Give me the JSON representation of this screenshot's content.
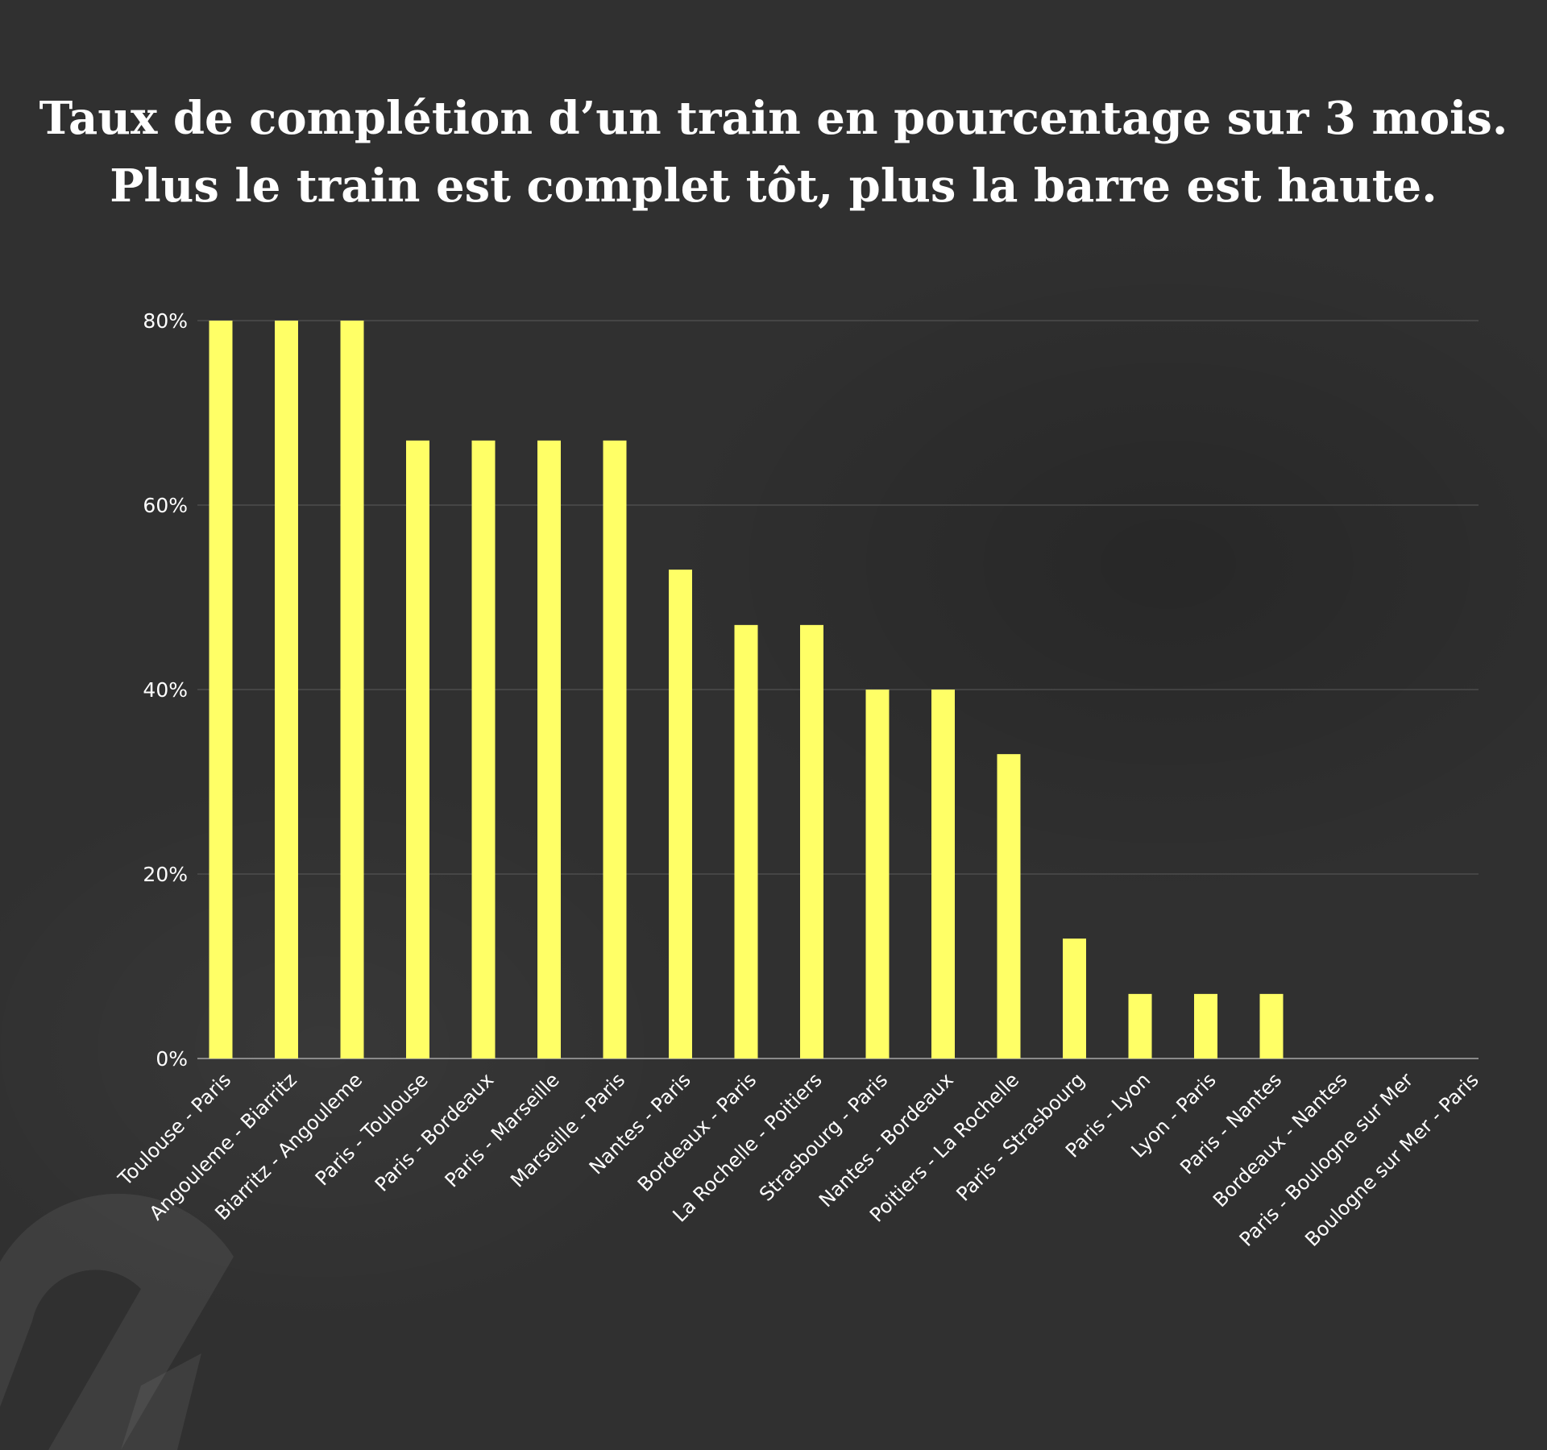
{
  "title_lines": [
    "Taux de complétion d’un train en pourcentage sur 3 mois.",
    "Plus le train est complet tôt, plus la barre est haute."
  ],
  "colors": {
    "background": "#303030",
    "bar": "#ffff66",
    "grid": "#5a5a5a",
    "text": "#ffffff"
  },
  "chart_data": {
    "type": "bar",
    "title": "Taux de complétion d’un train en pourcentage sur 3 mois. Plus le train est complet tôt, plus la barre est haute.",
    "xlabel": "",
    "ylabel": "",
    "ylim": [
      0,
      80
    ],
    "yticks": [
      0,
      20,
      40,
      60,
      80
    ],
    "ytick_labels": [
      "0%",
      "20%",
      "40%",
      "60%",
      "80%"
    ],
    "grid": true,
    "legend": "none",
    "categories": [
      "Toulouse - Paris",
      "Angouleme - Biarritz",
      "Biarritz - Angouleme",
      "Paris - Toulouse",
      "Paris - Bordeaux",
      "Paris - Marseille",
      "Marseille - Paris",
      "Nantes - Paris",
      "Bordeaux - Paris",
      "La Rochelle - Poitiers",
      "Strasbourg - Paris",
      "Nantes - Bordeaux",
      "Poitiers - La Rochelle",
      "Paris - Strasbourg",
      "Paris - Lyon",
      "Lyon - Paris",
      "Paris - Nantes",
      "Bordeaux - Nantes",
      "Paris - Boulogne sur Mer",
      "Boulogne sur Mer - Paris"
    ],
    "values": [
      80,
      80,
      80,
      67,
      67,
      67,
      67,
      53,
      47,
      47,
      40,
      40,
      33,
      13,
      7,
      7,
      7,
      0,
      0,
      0
    ]
  }
}
